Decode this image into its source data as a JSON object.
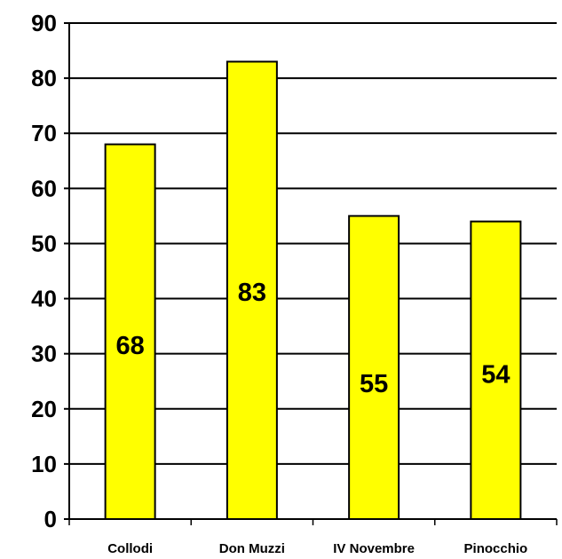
{
  "chart_data": {
    "type": "bar",
    "categories": [
      "Collodi",
      "Don Muzzi",
      "IV Novembre",
      "Pinocchio"
    ],
    "values": [
      68,
      83,
      55,
      54
    ],
    "data_labels": [
      "68",
      "83",
      "55",
      "54"
    ],
    "ylim": [
      0,
      90
    ],
    "yticks": [
      "0",
      "10",
      "20",
      "30",
      "40",
      "50",
      "60",
      "70",
      "80",
      "90"
    ],
    "grid": true,
    "legend": "none",
    "colors": {
      "bar_fill": "#FFFF00",
      "bar_stroke": "#000000",
      "grid": "#000000"
    }
  }
}
